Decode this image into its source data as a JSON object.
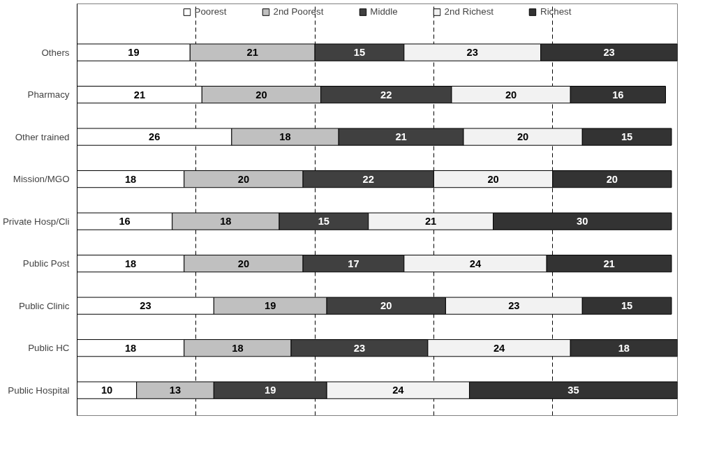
{
  "chart_data": {
    "type": "bar",
    "orientation": "horizontal",
    "stacked": true,
    "data_labels": true,
    "legend": "top",
    "grid": "x",
    "tick_labels": "y",
    "categories": [
      "Others",
      "Pharmacy",
      "Other trained",
      "Mission/MGO",
      "Private Hosp/Cli",
      "Public Post",
      "Public Clinic",
      "Public HC",
      "Public Hospital"
    ],
    "xlim": [
      0,
      101
    ],
    "xticks": [
      {
        "value": 20,
        "label": null
      },
      {
        "value": 40,
        "label": null
      },
      {
        "value": 60,
        "label": null
      },
      {
        "value": 80,
        "label": null
      }
    ],
    "series": [
      {
        "name": "Poorest",
        "color": "#ffffff",
        "values": [
          19,
          21,
          26,
          18,
          16,
          18,
          23,
          18,
          10
        ]
      },
      {
        "name": "2nd Poorest",
        "color": "#c0c0c0",
        "values": [
          21,
          20,
          18,
          20,
          18,
          20,
          19,
          18,
          13
        ]
      },
      {
        "name": "Middle",
        "color": "#404040",
        "values": [
          15,
          22,
          21,
          22,
          15,
          17,
          20,
          23,
          19
        ]
      },
      {
        "name": "2nd Richest",
        "color": "#f2f2f2",
        "values": [
          23,
          20,
          20,
          20,
          21,
          24,
          23,
          24,
          24
        ]
      },
      {
        "name": "Richest",
        "color": "#333333",
        "values": [
          23,
          16,
          15,
          20,
          30,
          21,
          15,
          18,
          35
        ]
      }
    ]
  }
}
